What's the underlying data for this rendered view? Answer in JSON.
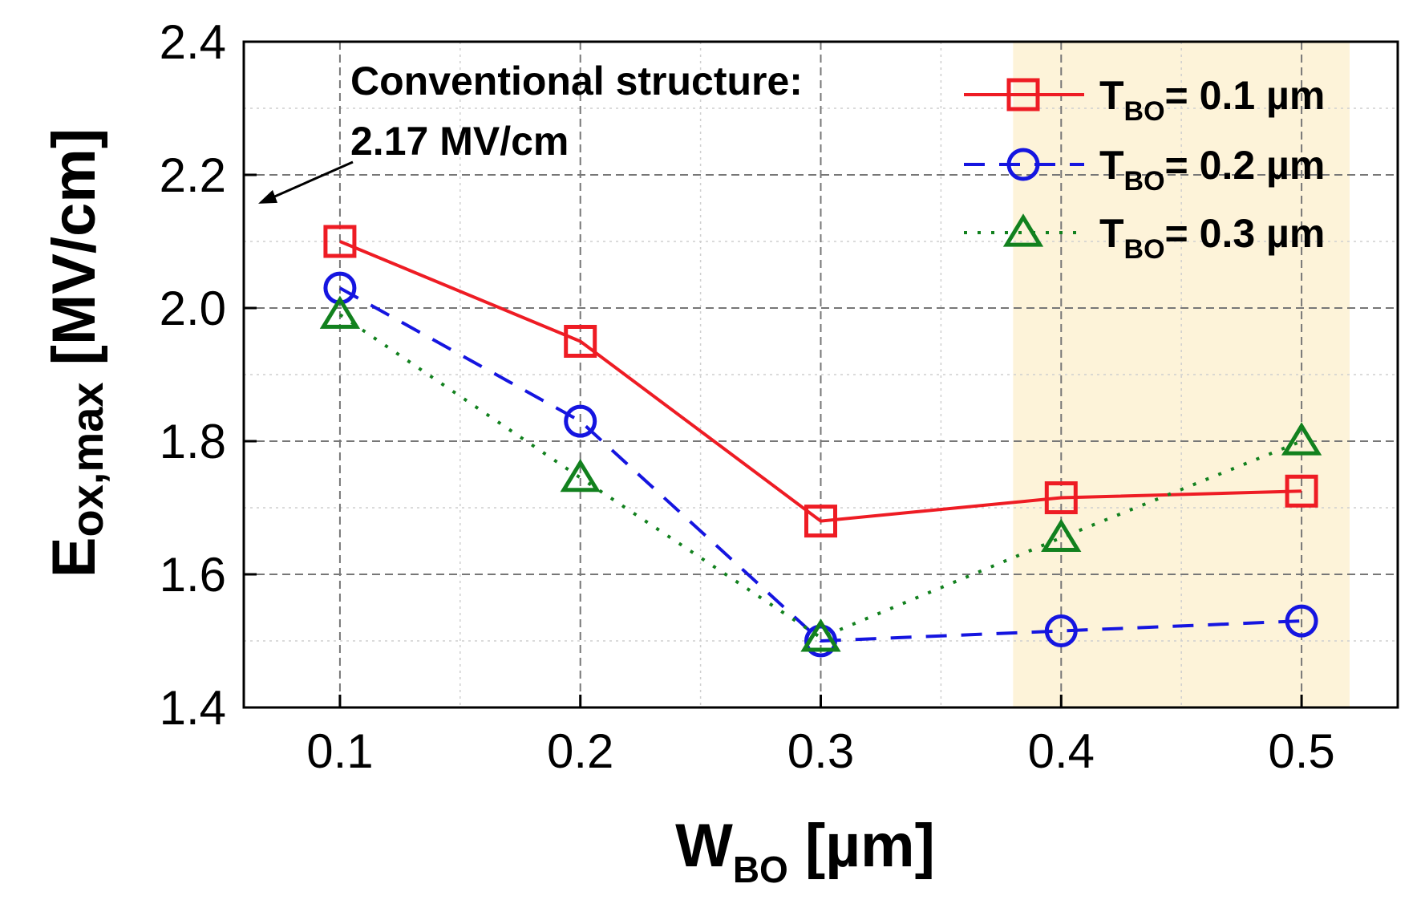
{
  "chart_data": {
    "type": "line",
    "x": [
      0.1,
      0.2,
      0.3,
      0.4,
      0.5
    ],
    "xlim": [
      0.06,
      0.54
    ],
    "ylim": [
      1.4,
      2.4
    ],
    "xticks": [
      "0.1",
      "0.2",
      "0.3",
      "0.4",
      "0.5"
    ],
    "yticks": [
      "1.4",
      "1.6",
      "1.8",
      "2.0",
      "2.2",
      "2.4"
    ],
    "ytick_values": [
      1.4,
      1.6,
      1.8,
      2.0,
      2.2,
      2.4
    ],
    "grid": true,
    "xlabel": {
      "main": "W",
      "sub": "BO",
      "rest": " [µm]"
    },
    "ylabel": {
      "main": "E",
      "sub": "ox,max",
      "rest": " [MV/cm]"
    },
    "highlight_region": {
      "x_start": 0.38,
      "x_end": 0.52,
      "color": "#fdf3d9"
    },
    "annotation": {
      "line1": "Conventional structure:",
      "line2": "2.17 MV/cm",
      "points_to_y": 2.17
    },
    "legend_position": "top-right",
    "series": [
      {
        "name": "T_BO= 0.1 µm",
        "label_main": "T",
        "label_sub": "BO",
        "label_rest": "= 0.1 µm",
        "values": [
          2.1,
          1.95,
          1.68,
          1.715,
          1.725
        ],
        "color": "#ee1c24",
        "marker": "square",
        "line": "solid"
      },
      {
        "name": "T_BO= 0.2 µm",
        "label_main": "T",
        "label_sub": "BO",
        "label_rest": "= 0.2 µm",
        "values": [
          2.03,
          1.83,
          1.5,
          1.515,
          1.53
        ],
        "color": "#1515e0",
        "marker": "circle",
        "line": "dashed"
      },
      {
        "name": "T_BO= 0.3 µm",
        "label_main": "T",
        "label_sub": "BO",
        "label_rest": "= 0.3 µm",
        "values": [
          1.99,
          1.745,
          1.505,
          1.655,
          1.8
        ],
        "color": "#12811e",
        "marker": "triangle",
        "line": "dotted"
      }
    ]
  }
}
